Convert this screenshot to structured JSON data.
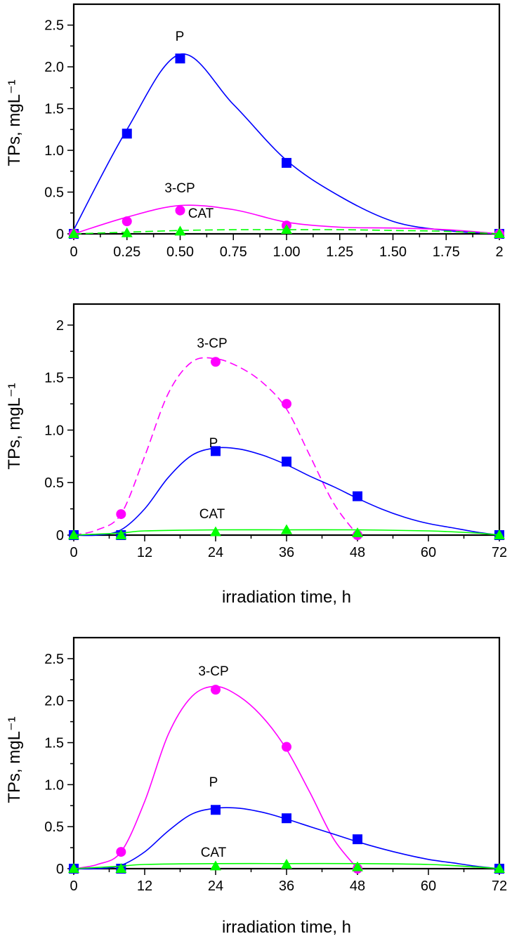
{
  "chart_data": [
    {
      "type": "line",
      "xlabel": "",
      "ylabel": "TPs, mgL⁻¹",
      "xlim": [
        0,
        2
      ],
      "ylim": [
        0,
        2.75
      ],
      "xticks": [
        0,
        0.25,
        0.5,
        0.75,
        1.0,
        1.25,
        1.5,
        1.75,
        2
      ],
      "xticklabels": [
        "0",
        "0.25",
        "0.50",
        "0.75",
        "1.00",
        "1.25",
        "1.50",
        "1.75",
        "2"
      ],
      "yticks": [
        0,
        0.5,
        1.0,
        1.5,
        2.0,
        2.5
      ],
      "yticklabels": [
        "0",
        "0.5",
        "1.0",
        "1.5",
        "2.0",
        "2.5"
      ],
      "grid": false,
      "series": [
        {
          "name": "P",
          "color": "#0000ff",
          "marker": "square",
          "line": "solid",
          "x": [
            0,
            0.25,
            0.5,
            1.0,
            2
          ],
          "y": [
            0,
            1.2,
            2.1,
            0.85,
            0
          ],
          "curve": [
            [
              0,
              0.05
            ],
            [
              0.25,
              1.25
            ],
            [
              0.5,
              2.15
            ],
            [
              0.75,
              1.55
            ],
            [
              1.0,
              0.88
            ],
            [
              1.25,
              0.45
            ],
            [
              1.5,
              0.15
            ],
            [
              1.75,
              0.04
            ],
            [
              2,
              0
            ]
          ]
        },
        {
          "name": "3-CP",
          "color": "#ff00ff",
          "marker": "circle",
          "line": "solid",
          "x": [
            0,
            0.25,
            0.5,
            1.0,
            2
          ],
          "y": [
            0,
            0.15,
            0.28,
            0.1,
            0
          ],
          "curve": [
            [
              0,
              0
            ],
            [
              0.25,
              0.2
            ],
            [
              0.5,
              0.34
            ],
            [
              0.75,
              0.29
            ],
            [
              1.0,
              0.14
            ],
            [
              1.25,
              0.08
            ],
            [
              1.5,
              0.07
            ],
            [
              1.75,
              0.05
            ],
            [
              2,
              0
            ]
          ]
        },
        {
          "name": "CAT",
          "color": "#00ff00",
          "marker": "triangle",
          "line": "dashed",
          "x": [
            0,
            0.25,
            0.5,
            1.0,
            2
          ],
          "y": [
            0,
            0.01,
            0.03,
            0.05,
            0
          ],
          "curve": [
            [
              0,
              0
            ],
            [
              0.25,
              0.02
            ],
            [
              0.5,
              0.04
            ],
            [
              0.75,
              0.05
            ],
            [
              1.0,
              0.05
            ],
            [
              1.25,
              0.05
            ],
            [
              1.5,
              0.04
            ],
            [
              1.75,
              0.03
            ],
            [
              2,
              0
            ]
          ]
        }
      ]
    },
    {
      "type": "line",
      "xlabel": "irradiation time, h",
      "ylabel": "TPs, mgL⁻¹",
      "xlim": [
        0,
        72
      ],
      "ylim": [
        0,
        2.2
      ],
      "xticks": [
        0,
        12,
        24,
        36,
        48,
        60,
        72
      ],
      "xticklabels": [
        "0",
        "12",
        "24",
        "36",
        "48",
        "60",
        "72"
      ],
      "yticks": [
        0,
        0.5,
        1.0,
        1.5,
        2
      ],
      "yticklabels": [
        "0",
        "0.5",
        "1.0",
        "1.5",
        "2"
      ],
      "grid": false,
      "series": [
        {
          "name": "3-CP",
          "color": "#ff00ff",
          "marker": "circle",
          "line": "dashed",
          "x": [
            0,
            8,
            24,
            36,
            48
          ],
          "y": [
            0,
            0.2,
            1.65,
            1.25,
            0
          ],
          "curve": [
            [
              0,
              0
            ],
            [
              4,
              0.05
            ],
            [
              8,
              0.2
            ],
            [
              12,
              0.75
            ],
            [
              16,
              1.35
            ],
            [
              20,
              1.65
            ],
            [
              24,
              1.68
            ],
            [
              28,
              1.6
            ],
            [
              32,
              1.45
            ],
            [
              36,
              1.2
            ],
            [
              40,
              0.75
            ],
            [
              44,
              0.3
            ],
            [
              48,
              0
            ]
          ]
        },
        {
          "name": "P",
          "color": "#0000ff",
          "marker": "square",
          "line": "solid",
          "x": [
            0,
            8,
            24,
            36,
            48,
            72
          ],
          "y": [
            0,
            0,
            0.8,
            0.7,
            0.37,
            0
          ],
          "curve": [
            [
              0,
              0
            ],
            [
              4,
              0.0
            ],
            [
              8,
              0.05
            ],
            [
              12,
              0.25
            ],
            [
              16,
              0.55
            ],
            [
              20,
              0.76
            ],
            [
              24,
              0.83
            ],
            [
              28,
              0.82
            ],
            [
              32,
              0.76
            ],
            [
              36,
              0.67
            ],
            [
              40,
              0.56
            ],
            [
              44,
              0.46
            ],
            [
              48,
              0.35
            ],
            [
              52,
              0.25
            ],
            [
              56,
              0.17
            ],
            [
              60,
              0.11
            ],
            [
              64,
              0.07
            ],
            [
              68,
              0.03
            ],
            [
              72,
              0
            ]
          ]
        },
        {
          "name": "CAT",
          "color": "#00ff00",
          "marker": "triangle",
          "line": "solid",
          "x": [
            0,
            8,
            24,
            36,
            48,
            72
          ],
          "y": [
            0,
            0,
            0.03,
            0.05,
            0.02,
            0
          ],
          "curve": [
            [
              0,
              0
            ],
            [
              8,
              0.02
            ],
            [
              12,
              0.04
            ],
            [
              24,
              0.05
            ],
            [
              36,
              0.05
            ],
            [
              48,
              0.05
            ],
            [
              60,
              0.04
            ],
            [
              68,
              0.02
            ],
            [
              72,
              0
            ]
          ]
        }
      ]
    },
    {
      "type": "line",
      "xlabel": "irradiation time, h",
      "ylabel": "TPs, mgL⁻¹",
      "xlim": [
        0,
        72
      ],
      "ylim": [
        0,
        2.75
      ],
      "xticks": [
        0,
        12,
        24,
        36,
        48,
        60,
        72
      ],
      "xticklabels": [
        "0",
        "12",
        "24",
        "36",
        "48",
        "60",
        "72"
      ],
      "yticks": [
        0,
        0.5,
        1.0,
        1.5,
        2.0,
        2.5
      ],
      "yticklabels": [
        "0",
        "0.5",
        "1.0",
        "1.5",
        "2.0",
        "2.5"
      ],
      "grid": false,
      "series": [
        {
          "name": "3-CP",
          "color": "#ff00ff",
          "marker": "circle",
          "line": "solid",
          "x": [
            0,
            8,
            24,
            36,
            48
          ],
          "y": [
            0,
            0.2,
            2.13,
            1.45,
            0
          ],
          "curve": [
            [
              0,
              0
            ],
            [
              4,
              0.05
            ],
            [
              8,
              0.2
            ],
            [
              12,
              0.8
            ],
            [
              16,
              1.6
            ],
            [
              20,
              2.05
            ],
            [
              24,
              2.17
            ],
            [
              28,
              2.05
            ],
            [
              32,
              1.8
            ],
            [
              36,
              1.42
            ],
            [
              40,
              0.9
            ],
            [
              44,
              0.35
            ],
            [
              48,
              0
            ]
          ]
        },
        {
          "name": "P",
          "color": "#0000ff",
          "marker": "square",
          "line": "solid",
          "x": [
            0,
            8,
            24,
            36,
            48,
            72
          ],
          "y": [
            0,
            0,
            0.7,
            0.6,
            0.35,
            0
          ],
          "curve": [
            [
              0,
              0
            ],
            [
              4,
              0.0
            ],
            [
              8,
              0.04
            ],
            [
              12,
              0.2
            ],
            [
              16,
              0.45
            ],
            [
              20,
              0.65
            ],
            [
              24,
              0.72
            ],
            [
              28,
              0.72
            ],
            [
              32,
              0.67
            ],
            [
              36,
              0.59
            ],
            [
              40,
              0.5
            ],
            [
              44,
              0.41
            ],
            [
              48,
              0.32
            ],
            [
              52,
              0.24
            ],
            [
              56,
              0.17
            ],
            [
              60,
              0.11
            ],
            [
              64,
              0.07
            ],
            [
              68,
              0.03
            ],
            [
              72,
              0
            ]
          ]
        },
        {
          "name": "CAT",
          "color": "#00ff00",
          "marker": "triangle",
          "line": "solid",
          "x": [
            0,
            8,
            24,
            36,
            48,
            72
          ],
          "y": [
            0,
            0,
            0.03,
            0.05,
            0.02,
            0
          ],
          "curve": [
            [
              0,
              0
            ],
            [
              8,
              0.03
            ],
            [
              12,
              0.05
            ],
            [
              24,
              0.06
            ],
            [
              36,
              0.06
            ],
            [
              48,
              0.06
            ],
            [
              60,
              0.05
            ],
            [
              68,
              0.02
            ],
            [
              72,
              0
            ]
          ]
        }
      ]
    }
  ]
}
